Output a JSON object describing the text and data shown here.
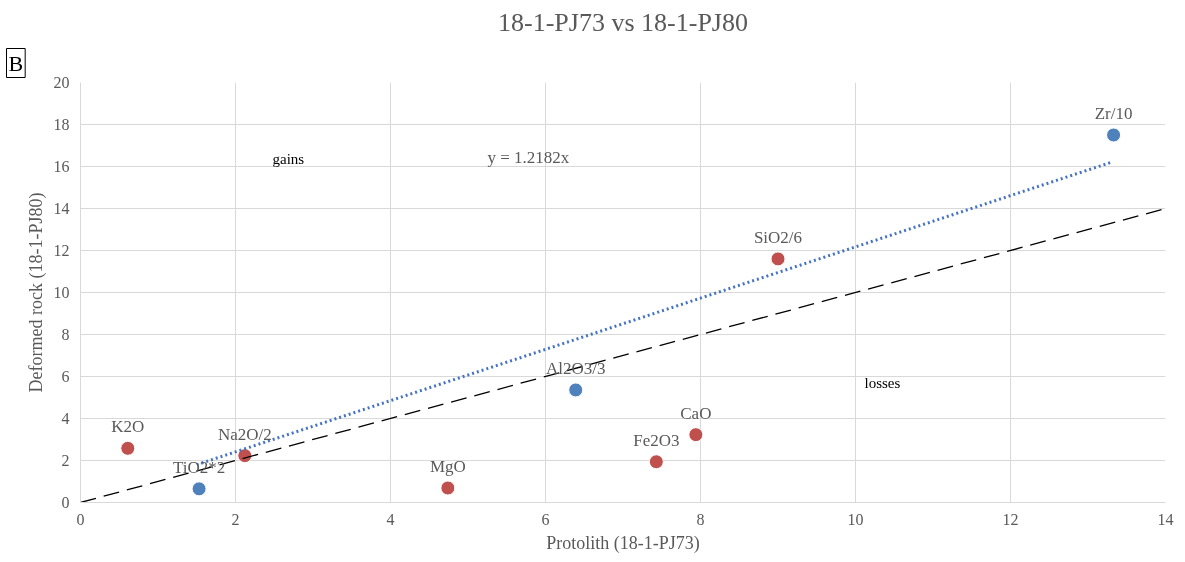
{
  "chart_data": {
    "type": "scatter",
    "title": "18-1-PJ73 vs 18-1-PJ80",
    "xlabel": "Protolith (18-1-PJ73)",
    "ylabel": "Deformed rock (18-1-PJ80)",
    "x": [
      0.61,
      2.12,
      4.74,
      7.43,
      7.94,
      9.0
    ],
    "series": [
      {
        "color": "#c0504d",
        "marker": "circle",
        "values": [
          2.58,
          2.23,
          0.69,
          1.94,
          3.23,
          11.6
        ]
      },
      {
        "color": "#4f81bd",
        "marker": "circle",
        "x": [
          1.53,
          6.39,
          13.33
        ],
        "values": [
          0.65,
          5.36,
          17.5
        ]
      },
      {
        "type": "line",
        "color": "#4472c4",
        "line_style": "dotted",
        "x": [
          1.5,
          13.3
        ],
        "values": [
          1.8,
          16.2
        ]
      },
      {
        "type": "line",
        "color": "#000000",
        "line_style": "dashed",
        "x": [
          0,
          14
        ],
        "values": [
          0,
          14
        ]
      }
    ],
    "xlim": [
      0,
      14
    ],
    "ylim": [
      0,
      20
    ],
    "xticks": [
      0,
      2,
      4,
      6,
      8,
      10,
      12,
      14
    ],
    "yticks": [
      0,
      2,
      4,
      6,
      8,
      10,
      12,
      14,
      16,
      18,
      20
    ],
    "grid": true,
    "annotations": [
      "B",
      {
        "text": "K2O",
        "x": 0.61,
        "y": 2.58
      },
      {
        "text": "Na2O/2",
        "x": 2.12,
        "y": 2.23
      },
      {
        "text": "TiO2*2",
        "x": 1.53,
        "y": 0.65
      },
      {
        "text": "MgO",
        "x": 4.74,
        "y": 0.69
      },
      {
        "text": "Al2O3/3",
        "x": 6.39,
        "y": 5.36
      },
      {
        "text": "Fe2O3",
        "x": 7.43,
        "y": 1.94
      },
      {
        "text": "CaO",
        "x": 7.94,
        "y": 3.23
      },
      {
        "text": "SiO2/6",
        "x": 9.0,
        "y": 11.6
      },
      {
        "text": "Zr/10",
        "x": 13.33,
        "y": 17.5
      },
      "gains",
      "y = 1.2182x",
      "losses"
    ]
  }
}
